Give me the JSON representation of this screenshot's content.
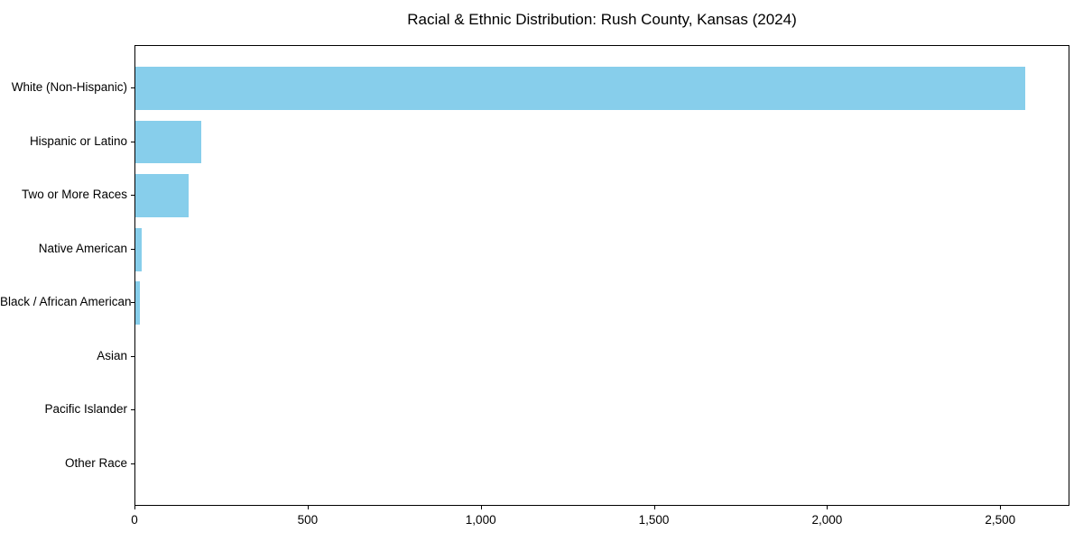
{
  "chart_data": {
    "type": "bar",
    "orientation": "horizontal",
    "title": "Racial & Ethnic Distribution: Rush County, Kansas (2024)",
    "categories": [
      "White (Non-Hispanic)",
      "Hispanic or Latino",
      "Two or More Races",
      "Native American",
      "Black / African American",
      "Asian",
      "Pacific Islander",
      "Other Race"
    ],
    "values": [
      2570,
      190,
      155,
      18,
      12,
      0,
      0,
      0
    ],
    "xlabel": "",
    "ylabel": "",
    "xlim": [
      0,
      2700
    ],
    "x_ticks": [
      0,
      500,
      1000,
      1500,
      2000,
      2500
    ],
    "x_tick_labels": [
      "0",
      "500",
      "1,000",
      "1,500",
      "2,000",
      "2,500"
    ],
    "bar_color": "#87CEEB",
    "background_color": "#ffffff",
    "axis_color": "#000000",
    "grid": false,
    "legend": false
  }
}
